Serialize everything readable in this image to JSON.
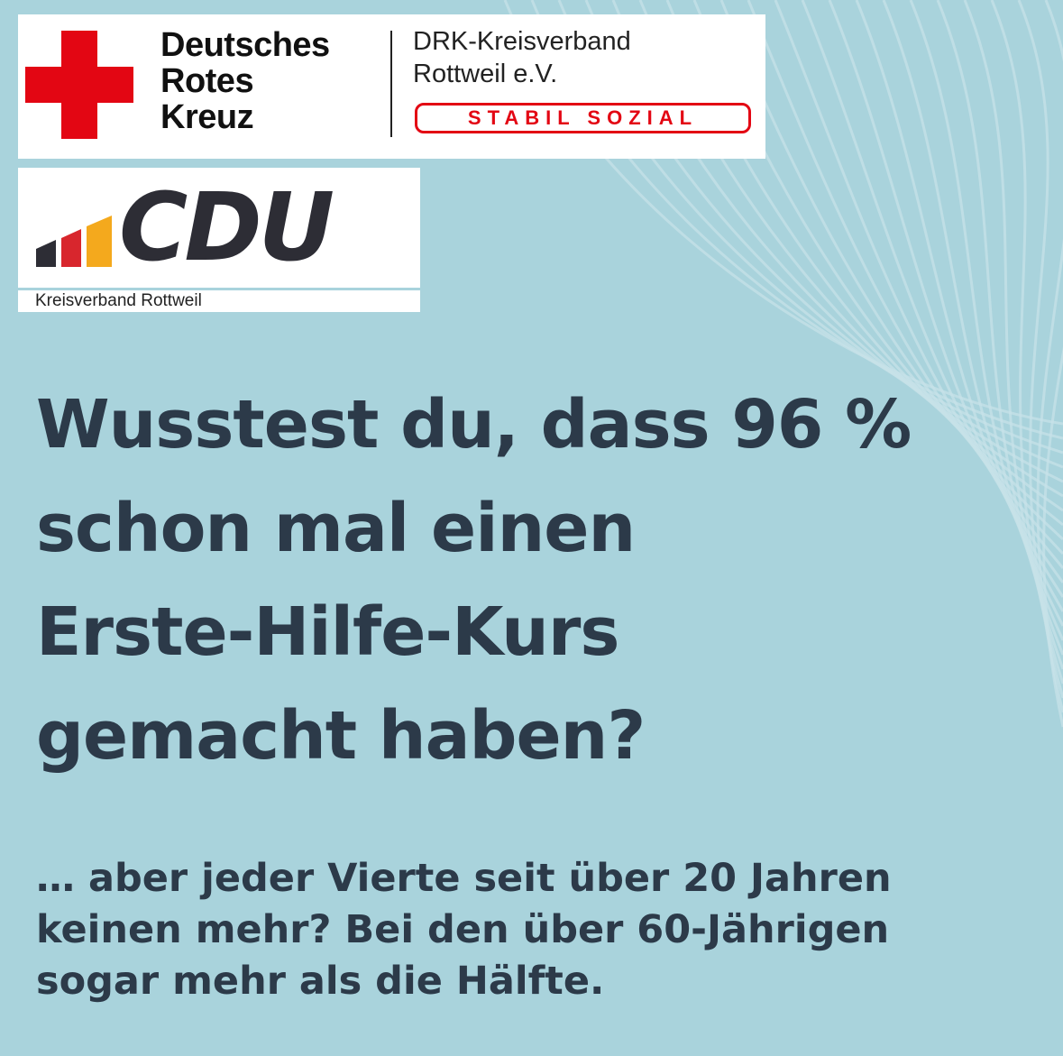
{
  "drk_logo": {
    "name_lines": [
      "Deutsches",
      "Rotes",
      "Kreuz"
    ],
    "org_lines": [
      "DRK-Kreisverband",
      "Rottweil e.V."
    ],
    "stamp_text": "STABIL SOZIAL",
    "cross_color": "#e30613"
  },
  "cdu_logo": {
    "wordmark": "CDU",
    "subtitle": "Kreisverband Rottweil",
    "bar_colors": [
      "#2d2d35",
      "#d8262d",
      "#f4a91d"
    ]
  },
  "headline": {
    "lines": [
      "Wusstest du, dass 96 %",
      "schon mal einen",
      "Erste-Hilfe-Kurs",
      "gemacht haben?"
    ]
  },
  "body": {
    "lines": [
      "… aber jeder Vierte seit über 20 Jahren",
      "keinen mehr? Bei den über 60-Jährigen",
      "sogar mehr als die Hälfte."
    ]
  },
  "colors": {
    "background": "#a9d3dc",
    "text": "#2c3a49"
  }
}
